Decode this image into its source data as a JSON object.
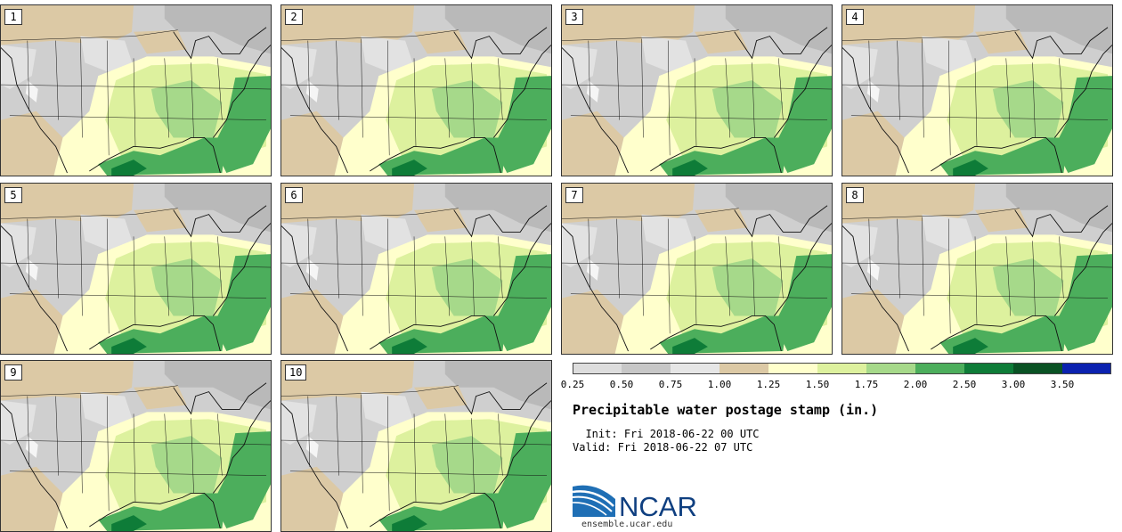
{
  "title": "Precipitable water postage stamp (in.)",
  "init": {
    "label": "Init:",
    "value": "Fri 2018-06-22 00 UTC"
  },
  "valid": {
    "label": "Valid:",
    "value": "Fri 2018-06-22 07 UTC"
  },
  "members": [
    "1",
    "2",
    "3",
    "4",
    "5",
    "6",
    "7",
    "8",
    "9",
    "10"
  ],
  "colorbar": {
    "ticks": [
      "0.25",
      "0.50",
      "0.75",
      "1.00",
      "1.25",
      "1.50",
      "1.75",
      "2.00",
      "2.50",
      "3.00",
      "3.50"
    ],
    "colors": [
      "#dddddd",
      "#c7c7c7",
      "#e6e6e6",
      "#dcc9a5",
      "#ffffcc",
      "#ddf19e",
      "#a6d98a",
      "#4cae5c",
      "#0e7c38",
      "#0a5224",
      "#0b22b0"
    ]
  },
  "logo": {
    "text": "NCAR",
    "site": "ensemble.ucar.edu"
  }
}
